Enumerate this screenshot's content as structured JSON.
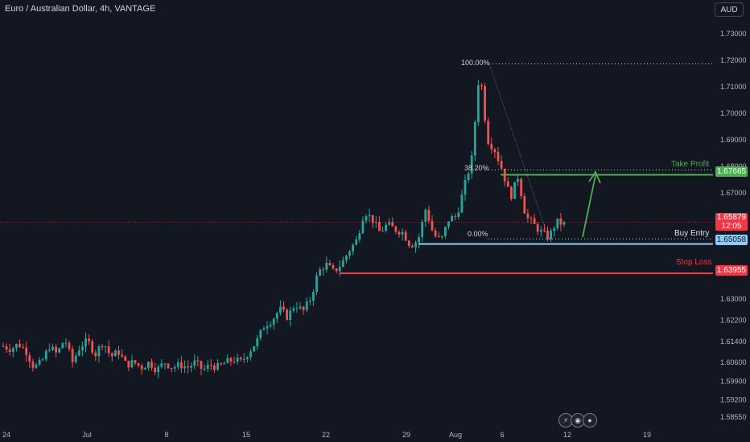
{
  "header": {
    "title": "Euro / Australian Dollar, 4h, VANTAGE",
    "currency_button": "AUD"
  },
  "colors": {
    "up": "#26a69a",
    "down": "#ef5350",
    "take_profit": "#4caf50",
    "stop_loss": "#f23645",
    "entry": "#90caf9",
    "background": "#131722"
  },
  "levels": {
    "take_profit": {
      "label": "Take Profit",
      "price": "1.67665"
    },
    "current": {
      "price": "1.65879",
      "countdown": "12:05"
    },
    "buy_entry": {
      "label": "Buy Entry",
      "price": "1.65058"
    },
    "stop_loss": {
      "label": "Stop Loss",
      "price": "1.63955"
    }
  },
  "fib_labels": {
    "top": "100.00%",
    "mid": "38.20%",
    "bottom": "0.00%"
  },
  "bottom_icons": [
    "lightning-icon",
    "earnings-icon",
    "events-icon"
  ],
  "chart_data": {
    "type": "candlestick",
    "title": "Euro / Australian Dollar, 4h, VANTAGE",
    "y_ticks": [
      "1.73000",
      "1.72000",
      "1.71000",
      "1.70000",
      "1.69000",
      "1.68000",
      "1.67000",
      "1.63000",
      "1.62200",
      "1.61400",
      "1.60600",
      "1.59900",
      "1.59200",
      "1.58550"
    ],
    "y_tick_values": [
      1.73,
      1.72,
      1.71,
      1.7,
      1.69,
      1.68,
      1.67,
      1.63,
      1.622,
      1.614,
      1.606,
      1.599,
      1.592,
      1.5855
    ],
    "x_ticks": [
      "24",
      "Jul",
      "8",
      "15",
      "22",
      "29",
      "Aug",
      "6",
      "12",
      "19"
    ],
    "ylim": [
      1.583,
      1.736
    ],
    "close_path": [
      1.612,
      1.611,
      1.613,
      1.61,
      1.604,
      1.606,
      1.612,
      1.609,
      1.615,
      1.606,
      1.612,
      1.614,
      1.609,
      1.614,
      1.608,
      1.61,
      1.605,
      1.606,
      1.604,
      1.606,
      1.603,
      1.606,
      1.604,
      1.605,
      1.604,
      1.606,
      1.603,
      1.605,
      1.604,
      1.606,
      1.607,
      1.606,
      1.61,
      1.614,
      1.62,
      1.622,
      1.626,
      1.623,
      1.628,
      1.625,
      1.63,
      1.64,
      1.643,
      1.64,
      1.643,
      1.648,
      1.652,
      1.663,
      1.66,
      1.655,
      1.658,
      1.656,
      1.655,
      1.65,
      1.652,
      1.664,
      1.654,
      1.652,
      1.66,
      1.661,
      1.672,
      1.683,
      1.717,
      1.69,
      1.686,
      1.678,
      1.668,
      1.676,
      1.661,
      1.658,
      1.655,
      1.653,
      1.659,
      1.658
    ],
    "fib": {
      "high": 1.7185,
      "level_38_2": 1.6785,
      "low": 1.6525
    },
    "series": [
      {
        "name": "Take Profit",
        "values": [
          1.67665
        ]
      },
      {
        "name": "Buy Entry",
        "values": [
          1.65058
        ]
      },
      {
        "name": "Stop Loss",
        "values": [
          1.63955
        ]
      }
    ],
    "grid": false
  }
}
